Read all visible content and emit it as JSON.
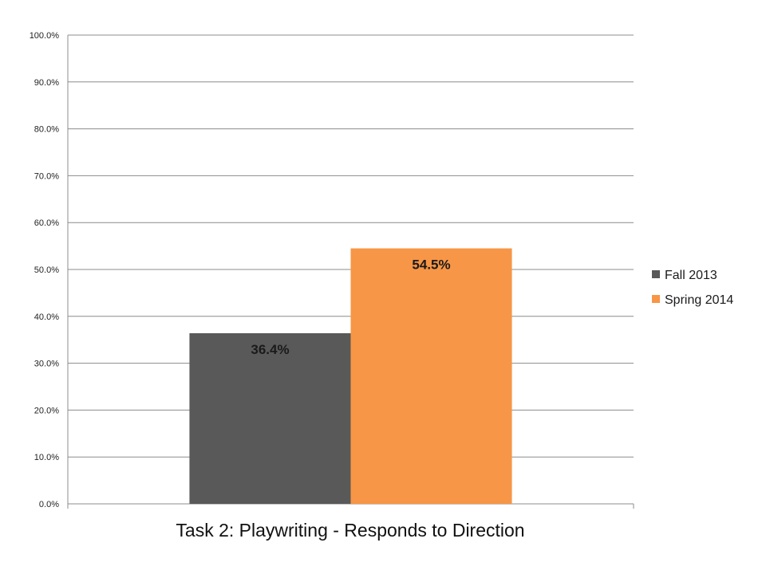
{
  "chart_data": {
    "type": "bar",
    "title": "Task 2: Playwriting - Responds to Direction",
    "xlabel": "",
    "ylabel": "",
    "categories": [
      ""
    ],
    "series": [
      {
        "name": "Fall 2013",
        "values": [
          36.4
        ],
        "label": "36.4%",
        "color": "#595959"
      },
      {
        "name": "Spring 2014",
        "values": [
          54.5
        ],
        "label": "54.5%",
        "color": "#F79646"
      }
    ],
    "ylim": [
      0,
      100
    ],
    "yticks": [
      "0.0%",
      "10.0%",
      "20.0%",
      "30.0%",
      "40.0%",
      "50.0%",
      "60.0%",
      "70.0%",
      "80.0%",
      "90.0%",
      "100.0%"
    ],
    "grid": true,
    "legend_position": "right"
  }
}
